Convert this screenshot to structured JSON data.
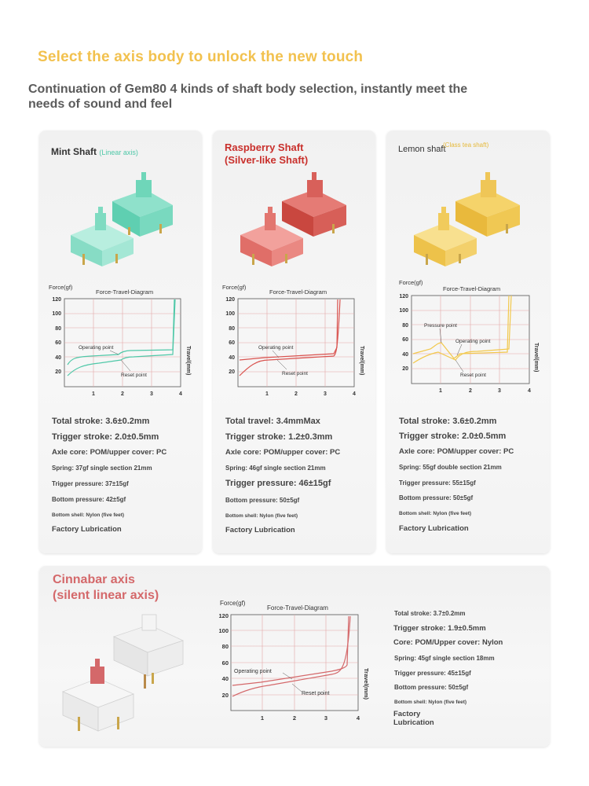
{
  "header": {
    "title": "Select the axis body to unlock the new touch",
    "subtitle": "Continuation of Gem80 4 kinds of shaft body selection, instantly meet the needs of sound and feel"
  },
  "colors": {
    "mint": "#4fc8a8",
    "raspberry": "#d9534f",
    "lemon": "#f2c84b",
    "cinnabar": "#d4686a",
    "headline": "#f2c14e"
  },
  "cards": [
    {
      "title": "Mint Shaft",
      "sub": "(Linear axis)",
      "specs": [
        "Total stroke: 3.6±0.2mm",
        "Trigger stroke: 2.0±0.5mm",
        "Axle core: POM/upper cover: PC",
        "Spring: 37gf single section 21mm",
        "Trigger pressure: 37±15gf",
        "Bottom pressure: 42±5gf",
        "Bottom shell: Nylon (five feet)",
        "Factory Lubrication"
      ]
    },
    {
      "title": "Raspberry Shaft",
      "sub": "(Silver-like Shaft)",
      "specs": [
        "Total travel: 3.4mmMax",
        "Trigger stroke: 1.2±0.3mm",
        "Axle core: POM/upper cover: PC",
        "Spring: 46gf single section 21mm",
        "Trigger pressure: 46±15gf",
        "Bottom pressure: 50±5gf",
        "Bottom shell: Nylon (five feet)",
        "Factory Lubrication"
      ]
    },
    {
      "title": "Lemon shaft",
      "sub": "(Class tea shaft)",
      "specs": [
        "Total stroke: 3.6±0.2mm",
        "Trigger stroke: 2.0±0.5mm",
        "Axle core: POM/upper cover: PC",
        "Spring: 55gf double section 21mm",
        "Trigger pressure: 55±15gf",
        "Bottom pressure: 50±5gf",
        "Bottom shell: Nylon (five feet)",
        "Factory Lubrication"
      ]
    },
    {
      "title": "Cinnabar axis",
      "sub": "(silent linear axis)",
      "specs": [
        "Total stroke: 3.7±0.2mm",
        "Trigger stroke: 1.9±0.5mm",
        "Core: POM/Upper cover: Nylon",
        "Spring: 45gf single section 18mm",
        "Trigger pressure: 45±15gf",
        "Bottom pressure: 50±5gf",
        "Bottom shell: Nylon (five feet)",
        "Factory Lubrication"
      ]
    }
  ],
  "diagram": {
    "title": "Force-Travel-Diagram",
    "ylabel": "Force(gf)",
    "xlabel": "Travel(mm)",
    "yticks": [
      "120",
      "100",
      "80",
      "60",
      "40",
      "20"
    ],
    "xticks": [
      "1",
      "2",
      "3",
      "4"
    ],
    "operating_point": "Operating point",
    "reset_point": "Reset point",
    "pressure_point": "Pressure point"
  }
}
